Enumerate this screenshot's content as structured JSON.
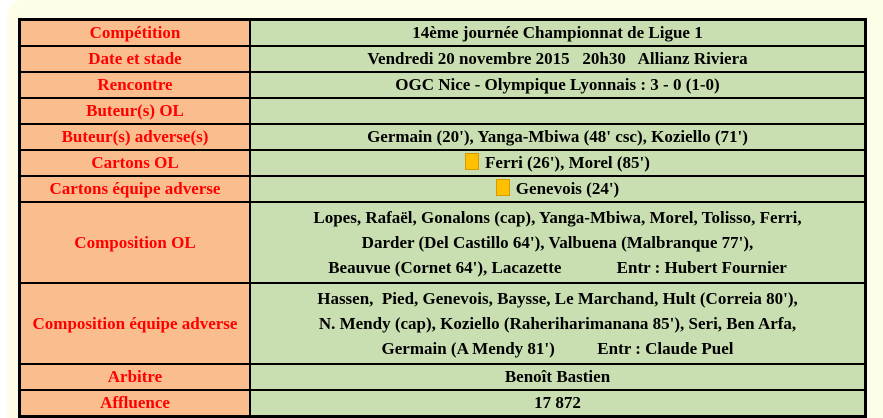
{
  "colors": {
    "page_bg": "#FDFDE8",
    "label_bg": "#FABE8E",
    "value_bg": "#C9DEB1",
    "label_text": "#FF0000",
    "value_text": "#000000",
    "card_fill": "#FFC000",
    "card_border": "#D79B00",
    "table_border": "#000000"
  },
  "table": {
    "rows": [
      {
        "label": "Compétition",
        "value": "14ème journée Championnat de Ligue 1"
      },
      {
        "label": "Date et stade",
        "value": "Vendredi 20 novembre 2015   20h30   Allianz Riviera"
      },
      {
        "label": "Rencontre",
        "value": "OGC Nice - Olympique Lyonnais : 3 - 0 (1-0)"
      },
      {
        "label": "Buteur(s) OL",
        "value": ""
      },
      {
        "label": "Buteur(s) adverse(s)",
        "value": "Germain (20'), Yanga-Mbiwa (48' csc), Koziello (71')"
      },
      {
        "label": "Cartons OL",
        "card_icon": "yellow-card",
        "value": "Ferri (26'), Morel (85')"
      },
      {
        "label": "Cartons équipe adverse",
        "card_icon": "yellow-card",
        "value": "Genevois (24')"
      },
      {
        "label": "Composition OL",
        "value_lines": [
          "Lopes, Rafaël, Gonalons (cap), Yanga-Mbiwa, Morel, Tolisso, Ferri,",
          "Darder (Del Castillo 64'), Valbuena (Malbranque 77'),",
          "Beauvue (Cornet 64'), Lacazette             Entr : Hubert Fournier"
        ]
      },
      {
        "label": "Composition équipe adverse",
        "value_lines": [
          "Hassen,  Pied, Genevois, Baysse, Le Marchand, Hult (Correia 80'),",
          "N. Mendy (cap), Koziello (Raheriharimanana 85'), Seri, Ben Arfa,",
          "Germain (A Mendy 81')          Entr : Claude Puel"
        ]
      },
      {
        "label": "Arbitre",
        "value": "Benoît Bastien"
      },
      {
        "label": "Affluence",
        "value": "17 872"
      }
    ]
  }
}
